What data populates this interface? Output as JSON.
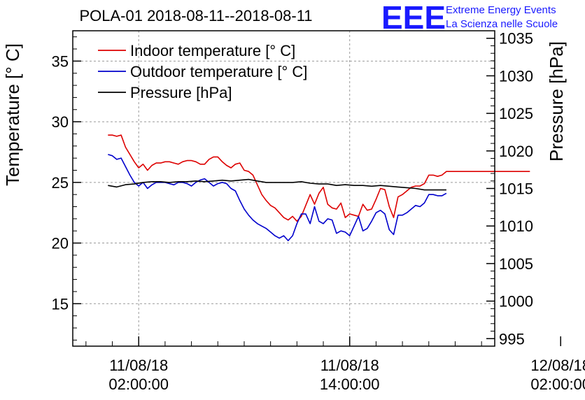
{
  "chart_data": {
    "type": "line",
    "title": "POLA-01 2018-08-11--2018-08-11",
    "logo": {
      "text": "EEE",
      "line1": "Extreme Energy Events",
      "line2": "La Scienza nelle Scuole",
      "color": "#1a1aff"
    },
    "xaxis": {
      "range_hours": [
        -3.75,
        20.25
      ],
      "major_ticks": [
        {
          "hour": 0,
          "line1": "11/08/18",
          "line2": "02:00:00"
        },
        {
          "hour": 12,
          "line1": "11/08/18",
          "line2": "14:00:00"
        },
        {
          "hour": 24,
          "line1": "12/08/18",
          "line2": "02:00:00"
        }
      ],
      "minor_step_hours": 1.5
    },
    "yaxis_left": {
      "label": "Temperature [° C]",
      "range": [
        11.5,
        37.5
      ],
      "ticks": [
        15,
        20,
        25,
        30,
        35
      ]
    },
    "yaxis_right": {
      "label": "Pressure [hPa]",
      "range": [
        994,
        1036
      ],
      "ticks": [
        995,
        1000,
        1005,
        1010,
        1015,
        1020,
        1025,
        1030,
        1035
      ]
    },
    "grid": true,
    "legend_position": "top-left",
    "series": [
      {
        "name": "Indoor temperature [° C]",
        "axis": "left",
        "color": "#dd0000",
        "x": [
          -1.75,
          -1.5,
          -1.25,
          -1.0,
          -0.75,
          -0.5,
          -0.25,
          0.0,
          0.25,
          0.5,
          0.75,
          1.0,
          1.25,
          1.5,
          1.75,
          2.0,
          2.25,
          2.5,
          2.75,
          3.0,
          3.25,
          3.5,
          3.75,
          4.0,
          4.25,
          4.5,
          4.75,
          5.0,
          5.25,
          5.5,
          5.75,
          6.0,
          6.25,
          6.5,
          6.75,
          7.0,
          7.25,
          7.5,
          7.75,
          8.0,
          8.25,
          8.5,
          8.75,
          9.0,
          9.25,
          9.5,
          9.75,
          10.0,
          10.25,
          10.5,
          10.75,
          11.0,
          11.25,
          11.5,
          11.75,
          12.0,
          12.25,
          12.5,
          12.75,
          13.0,
          13.25,
          13.5,
          13.75,
          14.0,
          14.25,
          14.5,
          14.75,
          15.0,
          15.25,
          15.5,
          15.75,
          16.0,
          16.25,
          16.5,
          16.75,
          17.0,
          17.25,
          17.5,
          17.75,
          18.0,
          18.25,
          18.5,
          18.75,
          19.0,
          19.25,
          19.5,
          19.75,
          20.0,
          20.25,
          20.5,
          20.75,
          21.0,
          21.25,
          21.5,
          21.75,
          22.0,
          22.25
        ],
        "values": [
          28.9,
          28.9,
          28.8,
          28.9,
          27.9,
          27.3,
          26.7,
          26.2,
          26.5,
          26.0,
          26.4,
          26.6,
          26.6,
          26.7,
          26.7,
          26.6,
          26.5,
          26.7,
          26.8,
          26.8,
          26.7,
          26.5,
          26.5,
          26.9,
          27.1,
          27.1,
          26.7,
          26.4,
          26.2,
          26.5,
          26.6,
          26.0,
          25.9,
          25.6,
          24.8,
          24.0,
          23.5,
          23.1,
          22.9,
          22.5,
          22.1,
          21.9,
          22.2,
          21.8,
          22.2,
          23.1,
          24.0,
          23.2,
          24.1,
          24.6,
          23.2,
          22.9,
          22.8,
          23.3,
          22.1,
          22.4,
          22.3,
          22.2,
          23.2,
          22.7,
          22.8,
          23.6,
          24.5,
          24.4,
          23.0,
          22.1,
          23.8,
          24.0,
          24.3,
          24.6,
          24.7,
          24.7,
          24.9,
          25.6,
          25.6,
          25.5,
          25.6,
          25.9,
          25.9,
          25.9,
          25.9,
          25.9,
          25.9,
          25.9,
          25.9,
          25.9,
          25.9,
          25.9,
          25.9,
          25.9,
          25.9,
          25.9,
          25.9,
          25.9,
          25.9,
          25.9,
          25.9
        ]
      },
      {
        "name": "Outdoor temperature [° C]",
        "axis": "left",
        "color": "#0000cc",
        "x": [
          -1.75,
          -1.5,
          -1.25,
          -1.0,
          -0.75,
          -0.5,
          -0.25,
          0.0,
          0.25,
          0.5,
          0.75,
          1.0,
          1.25,
          1.5,
          1.75,
          2.0,
          2.25,
          2.5,
          2.75,
          3.0,
          3.25,
          3.5,
          3.75,
          4.0,
          4.25,
          4.5,
          4.75,
          5.0,
          5.25,
          5.5,
          5.75,
          6.0,
          6.25,
          6.5,
          6.75,
          7.0,
          7.25,
          7.5,
          7.75,
          8.0,
          8.25,
          8.5,
          8.75,
          9.0,
          9.25,
          9.5,
          9.75,
          10.0,
          10.25,
          10.5,
          10.75,
          11.0,
          11.25,
          11.5,
          11.75,
          12.0,
          12.25,
          12.5,
          12.75,
          13.0,
          13.25,
          13.5,
          13.75,
          14.0,
          14.25,
          14.5,
          14.75,
          15.0,
          15.25,
          15.5,
          15.75,
          16.0,
          16.25,
          16.5,
          16.75,
          17.0,
          17.25,
          17.5
        ],
        "values": [
          27.3,
          27.2,
          26.9,
          27.0,
          26.3,
          25.6,
          25.0,
          24.7,
          25.0,
          24.5,
          24.8,
          25.0,
          25.0,
          25.0,
          24.9,
          24.8,
          25.0,
          25.0,
          24.9,
          24.7,
          25.0,
          25.2,
          25.3,
          25.0,
          24.7,
          24.9,
          25.0,
          24.9,
          24.5,
          24.3,
          23.5,
          22.8,
          22.3,
          21.9,
          21.6,
          21.4,
          21.2,
          20.9,
          20.6,
          20.4,
          20.6,
          20.2,
          20.6,
          21.6,
          22.4,
          22.4,
          21.6,
          23.0,
          21.8,
          21.6,
          22.0,
          21.9,
          20.8,
          21.0,
          20.9,
          20.6,
          21.4,
          22.2,
          21.0,
          21.2,
          21.8,
          22.5,
          22.7,
          22.4,
          21.1,
          20.7,
          22.3,
          22.3,
          22.5,
          22.8,
          23.1,
          23.0,
          23.3,
          24.0,
          24.0,
          23.9,
          23.9,
          24.1
        ]
      },
      {
        "name": "Pressure [hPa]",
        "axis": "right",
        "color": "#000000",
        "x": [
          -1.75,
          -1.25,
          -0.75,
          -0.25,
          0.25,
          0.75,
          1.25,
          1.75,
          2.25,
          2.75,
          3.25,
          3.75,
          4.25,
          4.75,
          5.25,
          5.75,
          6.25,
          6.75,
          7.25,
          7.75,
          8.25,
          8.75,
          9.25,
          9.75,
          10.25,
          10.75,
          11.25,
          11.75,
          12.25,
          12.75,
          13.25,
          13.75,
          14.25,
          14.75,
          15.25,
          15.75,
          16.25,
          16.75,
          17.25,
          17.5
        ],
        "values": [
          1015.4,
          1015.2,
          1015.5,
          1015.6,
          1015.8,
          1015.9,
          1015.9,
          1015.8,
          1015.9,
          1015.9,
          1016.0,
          1015.9,
          1016.0,
          1016.1,
          1016.0,
          1016.1,
          1016.2,
          1016.0,
          1015.8,
          1015.8,
          1015.8,
          1015.8,
          1015.9,
          1015.7,
          1015.6,
          1015.6,
          1015.4,
          1015.5,
          1015.4,
          1015.4,
          1015.3,
          1015.4,
          1015.3,
          1015.2,
          1015.1,
          1015.0,
          1014.8,
          1014.8,
          1014.8,
          1014.8
        ]
      }
    ]
  }
}
